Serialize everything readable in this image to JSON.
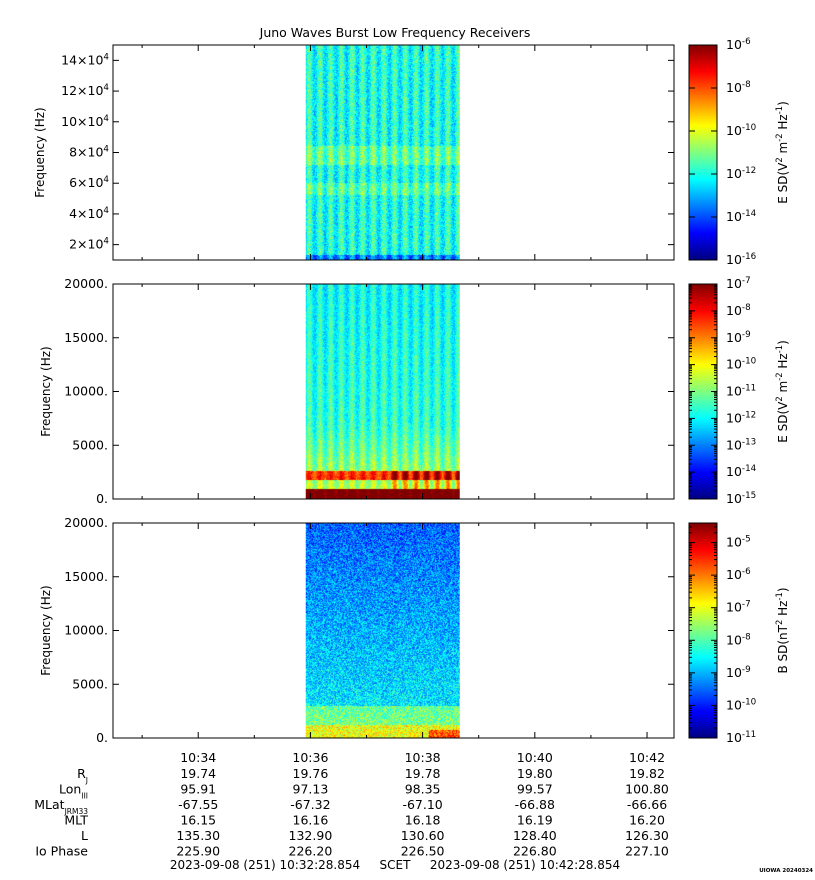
{
  "title": "Juno Waves Burst Low Frequency Receivers",
  "stamp": "UIOWA 20240324",
  "time_range": {
    "start": "2023-09-08 (251) 10:32:28.854",
    "label": "SCET",
    "end": "2023-09-08 (251) 10:42:28.854"
  },
  "chart_data": [
    {
      "type": "heatmap",
      "ylabel": "Frequency (Hz)",
      "ylim": [
        10000,
        150000
      ],
      "yticks": [
        {
          "value": 20000,
          "mantissa": "2×10",
          "exp": "4"
        },
        {
          "value": 40000,
          "mantissa": "4×10",
          "exp": "4"
        },
        {
          "value": 60000,
          "mantissa": "6×10",
          "exp": "4"
        },
        {
          "value": 80000,
          "mantissa": "8×10",
          "exp": "4"
        },
        {
          "value": 100000,
          "mantissa": "10×10",
          "exp": "4"
        },
        {
          "value": 120000,
          "mantissa": "12×10",
          "exp": "4"
        },
        {
          "value": 140000,
          "mantissa": "14×10",
          "exp": "4"
        }
      ],
      "data_span": [
        "10:35:55",
        "10:38:40"
      ],
      "colorbar": {
        "label_parts": [
          [
            "E SD(V",
            ""
          ],
          [
            "2",
            "sup"
          ],
          [
            " m",
            ""
          ],
          [
            "-2",
            "sup"
          ],
          [
            " Hz",
            ""
          ],
          [
            "-1",
            "sup"
          ],
          [
            ")",
            ""
          ]
        ],
        "range_exp": [
          -16,
          -6
        ],
        "ticks": [
          {
            "exp": -6,
            "label": "-6"
          },
          {
            "exp": -8,
            "label": "-8"
          },
          {
            "exp": -10,
            "label": "-10"
          },
          {
            "exp": -12,
            "label": "-12"
          },
          {
            "exp": -14,
            "label": "-14"
          },
          {
            "exp": -16,
            "label": "-16"
          }
        ],
        "minor": false
      }
    },
    {
      "type": "heatmap",
      "ylabel": "Frequency (Hz)",
      "ylim": [
        0,
        20000
      ],
      "yticks": [
        {
          "value": 0,
          "label": "0."
        },
        {
          "value": 5000,
          "label": "5000."
        },
        {
          "value": 10000,
          "label": "10000."
        },
        {
          "value": 15000,
          "label": "15000."
        },
        {
          "value": 20000,
          "label": "20000."
        }
      ],
      "data_span": [
        "10:35:55",
        "10:38:40"
      ],
      "colorbar": {
        "label_parts": [
          [
            "E SD(V",
            ""
          ],
          [
            "2",
            "sup"
          ],
          [
            " m",
            ""
          ],
          [
            "-2",
            "sup"
          ],
          [
            " Hz",
            ""
          ],
          [
            "-1",
            "sup"
          ],
          [
            ")",
            ""
          ]
        ],
        "range_exp": [
          -15,
          -7
        ],
        "ticks": [
          {
            "exp": -7,
            "label": "-7"
          },
          {
            "exp": -8,
            "label": "-8"
          },
          {
            "exp": -9,
            "label": "-9"
          },
          {
            "exp": -10,
            "label": "-10"
          },
          {
            "exp": -11,
            "label": "-11"
          },
          {
            "exp": -12,
            "label": "-12"
          },
          {
            "exp": -13,
            "label": "-13"
          },
          {
            "exp": -14,
            "label": "-14"
          },
          {
            "exp": -15,
            "label": "-15"
          }
        ],
        "minor": true
      }
    },
    {
      "type": "heatmap",
      "ylabel": "Frequency (Hz)",
      "ylim": [
        0,
        20000
      ],
      "yticks": [
        {
          "value": 0,
          "label": "0."
        },
        {
          "value": 5000,
          "label": "5000."
        },
        {
          "value": 10000,
          "label": "10000."
        },
        {
          "value": 15000,
          "label": "15000."
        },
        {
          "value": 20000,
          "label": "20000."
        }
      ],
      "data_span": [
        "10:35:55",
        "10:38:40"
      ],
      "colorbar": {
        "label_parts": [
          [
            "B SD(nT",
            ""
          ],
          [
            "2",
            "sup"
          ],
          [
            " Hz",
            ""
          ],
          [
            "-1",
            "sup"
          ],
          [
            ")",
            ""
          ]
        ],
        "range_exp": [
          -11,
          -4.4
        ],
        "ticks": [
          {
            "exp": -5,
            "label": "-5"
          },
          {
            "exp": -6,
            "label": "-6"
          },
          {
            "exp": -7,
            "label": "-7"
          },
          {
            "exp": -8,
            "label": "-8"
          },
          {
            "exp": -9,
            "label": "-9"
          },
          {
            "exp": -10,
            "label": "-10"
          },
          {
            "exp": -11,
            "label": "-11"
          }
        ],
        "minor": true
      }
    }
  ],
  "x_axis": {
    "range": [
      "10:32:28.854",
      "10:42:28.854"
    ],
    "major_ticks": [
      "10:34",
      "10:36",
      "10:38",
      "10:40",
      "10:42"
    ],
    "minor_ticks": [
      "10:33",
      "10:35",
      "10:37",
      "10:39",
      "10:41"
    ]
  },
  "ephemeris": {
    "rows": [
      {
        "label_parts": [
          [
            "R",
            ""
          ],
          [
            "J",
            "sub"
          ]
        ],
        "values": [
          "19.74",
          "19.76",
          "19.78",
          "19.80",
          "19.82"
        ]
      },
      {
        "label_parts": [
          [
            "Lon",
            ""
          ],
          [
            "III",
            "sub"
          ]
        ],
        "values": [
          "95.91",
          "97.13",
          "98.35",
          "99.57",
          "100.80"
        ]
      },
      {
        "label_parts": [
          [
            "MLat",
            ""
          ],
          [
            "JRM33",
            "sub"
          ]
        ],
        "values": [
          "-67.55",
          "-67.32",
          "-67.10",
          "-66.88",
          "-66.66"
        ]
      },
      {
        "label_parts": [
          [
            "MLT",
            ""
          ]
        ],
        "values": [
          "16.15",
          "16.16",
          "16.18",
          "16.19",
          "16.20"
        ]
      },
      {
        "label_parts": [
          [
            "L",
            ""
          ]
        ],
        "values": [
          "135.30",
          "132.90",
          "130.60",
          "128.40",
          "126.30"
        ]
      },
      {
        "label_parts": [
          [
            "Io Phase",
            ""
          ]
        ],
        "values": [
          "225.90",
          "226.20",
          "226.50",
          "226.80",
          "227.10"
        ]
      }
    ]
  }
}
